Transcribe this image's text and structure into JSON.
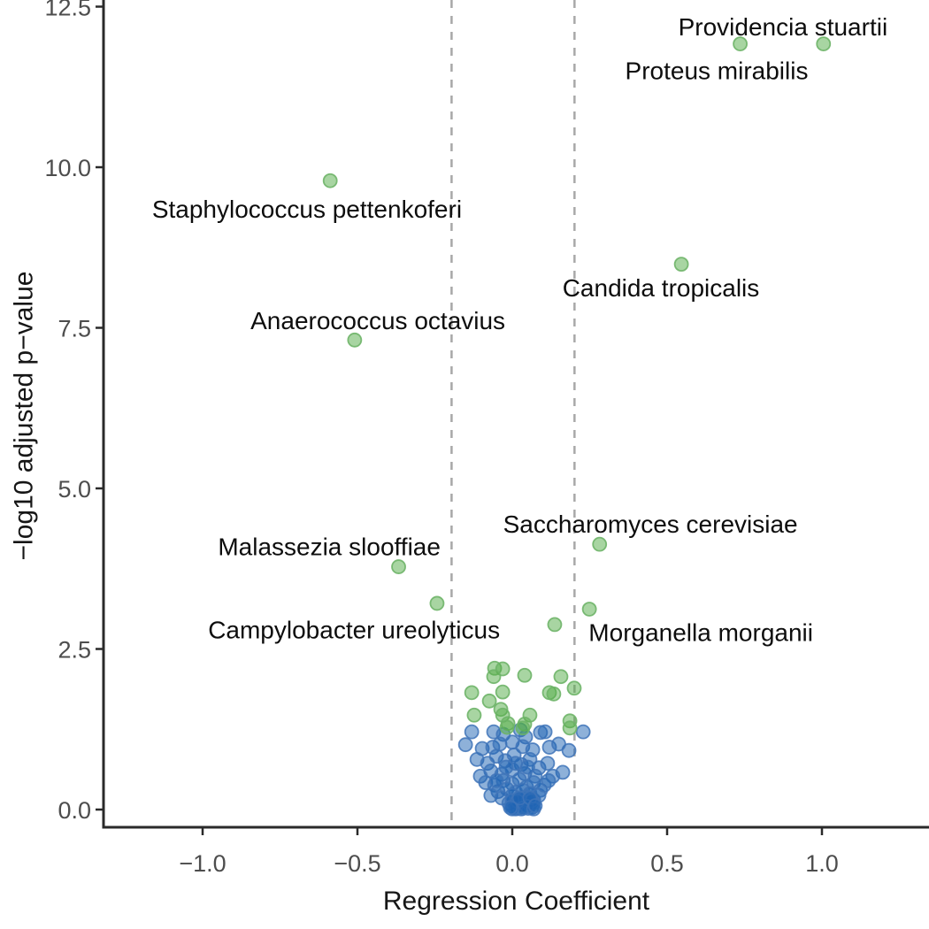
{
  "figure": {
    "background": "#ffffff"
  },
  "chart_data": {
    "type": "scatter",
    "title": "",
    "xlabel": "Regression Coefficient",
    "ylabel": "−log10 adjusted p−value",
    "xlim": [
      -1.32,
      1.35
    ],
    "ylim": [
      -0.28,
      12.6
    ],
    "grid": false,
    "legend": "none",
    "x_ticks": {
      "values": [
        -1.0,
        -0.5,
        0.0,
        0.5,
        1.0
      ],
      "labels": [
        "−1.0",
        "−0.5",
        "0.0",
        "0.5",
        "1.0"
      ]
    },
    "y_ticks": {
      "values": [
        0.0,
        2.5,
        5.0,
        7.5,
        10.0,
        12.5
      ],
      "labels": [
        "0.0",
        "2.5",
        "5.0",
        "7.5",
        "10.0",
        "12.5"
      ]
    },
    "threshold_vlines": {
      "values": [
        -0.196,
        0.201
      ],
      "style": "dashed",
      "color": "#a8a8a8"
    },
    "colors": {
      "significant_fill": "#51ab45",
      "significant_edge": "#6eb468",
      "nonsignificant_fill": "#1e64b4",
      "nonsignificant_edge": "#3f74b8",
      "tick_label": "#4d4d4d",
      "axis_line": "#2a2a2a",
      "annotation_text": "#0d0d0d"
    },
    "labeled_points": [
      {
        "species": "Providencia stuartii",
        "x": 1.005,
        "y": 11.92,
        "label_x": 0.874,
        "label_y": 12.19
      },
      {
        "species": "Proteus mirabilis",
        "x": 0.736,
        "y": 11.92,
        "label_x": 0.66,
        "label_y": 11.51
      },
      {
        "species": "Staphylococcus pettenkoferi",
        "x": -0.588,
        "y": 9.79,
        "label_x": -0.663,
        "label_y": 9.35
      },
      {
        "species": "Candida tropicalis",
        "x": 0.546,
        "y": 8.49,
        "label_x": 0.48,
        "label_y": 8.13
      },
      {
        "species": "Anaerococcus octavius",
        "x": -0.509,
        "y": 7.31,
        "label_x": -0.434,
        "label_y": 7.62
      },
      {
        "species": "Saccharomyces cerevisiae",
        "x": 0.282,
        "y": 4.13,
        "label_x": 0.446,
        "label_y": 4.45
      },
      {
        "species": "Malassezia slooffiae",
        "x": -0.367,
        "y": 3.78,
        "label_x": -0.591,
        "label_y": 4.1
      },
      {
        "species": "Campylobacter ureolyticus",
        "x": -0.243,
        "y": 3.21,
        "label_x": -0.511,
        "label_y": 2.8
      },
      {
        "species": "Morganella morganii",
        "x": 0.137,
        "y": 2.88,
        "label_x": 0.609,
        "label_y": 2.76
      }
    ],
    "green_points": [
      [
        0.249,
        3.12
      ],
      [
        -0.057,
        2.2
      ],
      [
        -0.031,
        2.19
      ],
      [
        -0.06,
        2.07
      ],
      [
        0.04,
        2.09
      ],
      [
        0.157,
        2.07
      ],
      [
        -0.131,
        1.82
      ],
      [
        -0.031,
        1.83
      ],
      [
        -0.074,
        1.69
      ],
      [
        0.12,
        1.82
      ],
      [
        0.134,
        1.8
      ],
      [
        0.2,
        1.89
      ],
      [
        -0.123,
        1.47
      ],
      [
        -0.037,
        1.56
      ],
      [
        -0.031,
        1.47
      ],
      [
        -0.014,
        1.34
      ],
      [
        0.057,
        1.47
      ],
      [
        0.186,
        1.38
      ],
      [
        0.04,
        1.33
      ],
      [
        -0.017,
        1.28
      ],
      [
        0.034,
        1.27
      ],
      [
        0.186,
        1.27
      ]
    ],
    "blue_points": [
      [
        -0.151,
        1.01
      ],
      [
        -0.131,
        1.21
      ],
      [
        -0.06,
        1.21
      ],
      [
        -0.029,
        1.17
      ],
      [
        0.026,
        1.24
      ],
      [
        0.043,
        1.13
      ],
      [
        0.091,
        1.2
      ],
      [
        0.106,
        1.21
      ],
      [
        0.229,
        1.21
      ],
      [
        0.183,
        0.92
      ],
      [
        -0.097,
        0.95
      ],
      [
        -0.063,
        0.97
      ],
      [
        -0.04,
        1.02
      ],
      [
        0.0,
        1.05
      ],
      [
        0.034,
        0.98
      ],
      [
        0.066,
        0.93
      ],
      [
        0.12,
        0.97
      ],
      [
        0.15,
        1.02
      ],
      [
        -0.114,
        0.78
      ],
      [
        -0.08,
        0.72
      ],
      [
        -0.051,
        0.83
      ],
      [
        -0.023,
        0.76
      ],
      [
        0.006,
        0.85
      ],
      [
        0.029,
        0.7
      ],
      [
        0.057,
        0.78
      ],
      [
        0.086,
        0.65
      ],
      [
        0.114,
        0.72
      ],
      [
        0.163,
        0.58
      ],
      [
        -0.069,
        0.6
      ],
      [
        -0.034,
        0.55
      ],
      [
        0.0,
        0.62
      ],
      [
        0.04,
        0.56
      ],
      [
        0.074,
        0.52
      ],
      [
        -0.103,
        0.52
      ],
      [
        0.131,
        0.52
      ],
      [
        0.01,
        0.72
      ],
      [
        -0.02,
        0.66
      ],
      [
        0.05,
        0.66
      ],
      [
        -0.086,
        0.42
      ],
      [
        -0.057,
        0.38
      ],
      [
        -0.029,
        0.45
      ],
      [
        0.0,
        0.4
      ],
      [
        0.023,
        0.47
      ],
      [
        0.046,
        0.35
      ],
      [
        0.069,
        0.42
      ],
      [
        0.091,
        0.3
      ],
      [
        -0.046,
        0.28
      ],
      [
        -0.017,
        0.32
      ],
      [
        0.011,
        0.27
      ],
      [
        0.034,
        0.3
      ],
      [
        0.057,
        0.25
      ],
      [
        -0.069,
        0.22
      ],
      [
        -0.034,
        0.18
      ],
      [
        0.0,
        0.22
      ],
      [
        0.023,
        0.16
      ],
      [
        0.046,
        0.2
      ],
      [
        0.069,
        0.15
      ],
      [
        0.086,
        0.22
      ],
      [
        -0.051,
        0.45
      ],
      [
        0.103,
        0.38
      ],
      [
        0.117,
        0.45
      ],
      [
        -0.011,
        0.1
      ],
      [
        0.0,
        0.05
      ],
      [
        0.011,
        0.12
      ],
      [
        0.017,
        0.02
      ],
      [
        0.023,
        0.08
      ],
      [
        0.029,
        0.01
      ],
      [
        0.034,
        0.1
      ],
      [
        0.04,
        0.04
      ],
      [
        0.046,
        0.12
      ],
      [
        0.051,
        0.02
      ],
      [
        0.057,
        0.08
      ],
      [
        0.063,
        0.03
      ],
      [
        0.069,
        0.1
      ],
      [
        0.029,
        0.14
      ],
      [
        0.04,
        0.18
      ],
      [
        0.0,
        0.14
      ],
      [
        0.051,
        0.15
      ],
      [
        0.011,
        0.01
      ],
      [
        0.063,
        0.14
      ],
      [
        0.046,
        0.05
      ],
      [
        0.017,
        0.13
      ],
      [
        0.034,
        0.02
      ],
      [
        0.023,
        0.18
      ],
      [
        0.057,
        0.18
      ],
      [
        0.0,
        0.01
      ],
      [
        0.069,
        0.01
      ],
      [
        0.074,
        0.06
      ],
      [
        -0.006,
        0.03
      ]
    ]
  }
}
